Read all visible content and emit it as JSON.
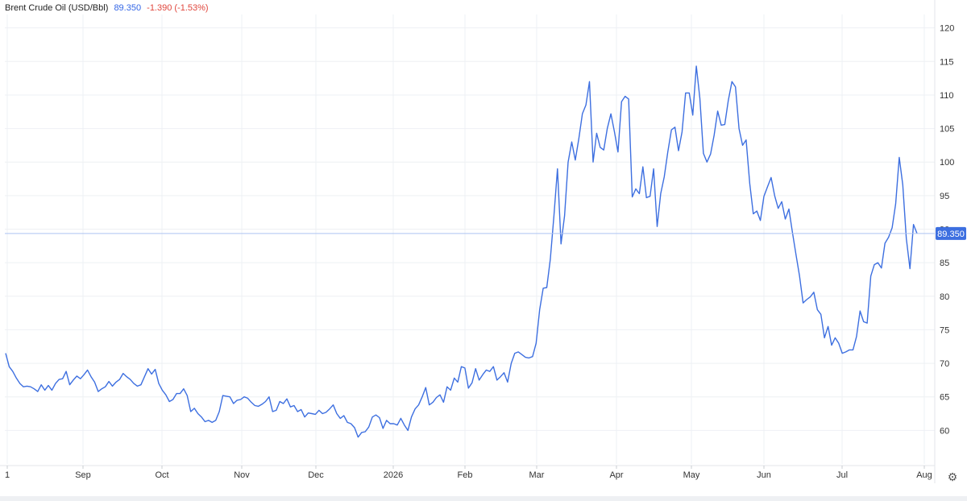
{
  "header": {
    "title": "Brent Crude Oil (USD/Bbl)",
    "price": "89.350",
    "change": "-1.390 (-1.53%)"
  },
  "price_label": "89.350",
  "settings_icon": "gear-icon",
  "colors": {
    "line": "#3d6fe0",
    "price_tag": "#3d6fe0",
    "grid": "#eef0f4",
    "change_negative": "#e0463c"
  },
  "chart_data": {
    "type": "line",
    "title": "Brent Crude Oil (USD/Bbl)",
    "ylim": [
      55,
      122
    ],
    "y_ticks": [
      60,
      65,
      70,
      75,
      80,
      85,
      90,
      95,
      100,
      105,
      110,
      115,
      120
    ],
    "x_ticks": [
      "1",
      "Sep",
      "Oct",
      "Nov",
      "Dec",
      "2026",
      "Feb",
      "Mar",
      "Apr",
      "May",
      "Jun",
      "Jul",
      "Aug"
    ],
    "grid": true,
    "current_value": 89.35,
    "series": [
      {
        "values": [
          71.5,
          69.5,
          68.8,
          67.8,
          67.0,
          66.5,
          66.6,
          66.5,
          66.2,
          65.8,
          66.8,
          66.0,
          66.7,
          66.0,
          67.0,
          67.6,
          67.7,
          68.8,
          66.8,
          67.5,
          68.1,
          67.7,
          68.3,
          69.0,
          68.0,
          67.2,
          65.8,
          66.2,
          66.5,
          67.3,
          66.6,
          67.2,
          67.6,
          68.5,
          68.0,
          67.6,
          67.0,
          66.6,
          66.8,
          68.0,
          69.2,
          68.4,
          69.1,
          67.0,
          66.0,
          65.3,
          64.3,
          64.6,
          65.5,
          65.5,
          66.2,
          65.2,
          62.8,
          63.3,
          62.5,
          62.0,
          61.3,
          61.5,
          61.2,
          61.5,
          62.8,
          65.2,
          65.1,
          65.0,
          64.0,
          64.5,
          64.6,
          65.0,
          64.8,
          64.2,
          63.7,
          63.6,
          63.9,
          64.3,
          65.0,
          62.8,
          63.0,
          64.3,
          64.0,
          64.7,
          63.5,
          63.7,
          62.8,
          63.1,
          62.0,
          62.6,
          62.5,
          62.4,
          63.0,
          62.5,
          62.7,
          63.2,
          63.8,
          62.5,
          61.8,
          62.2,
          61.2,
          61.0,
          60.4,
          59.0,
          59.7,
          59.8,
          60.5,
          62.0,
          62.3,
          61.9,
          60.3,
          61.5,
          61.0,
          61.0,
          60.8,
          61.8,
          60.8,
          60.0,
          62.0,
          63.2,
          63.8,
          65.0,
          66.4,
          63.8,
          64.2,
          64.9,
          65.3,
          64.2,
          66.5,
          66.0,
          67.8,
          67.2,
          69.5,
          69.3,
          66.3,
          67.1,
          69.2,
          67.5,
          68.3,
          69.0,
          68.8,
          69.5,
          67.5,
          68.0,
          68.6,
          67.2,
          70.0,
          71.5,
          71.7,
          71.3,
          70.9,
          70.8,
          71.0,
          73.0,
          78.0,
          81.2,
          81.3,
          85.5,
          92.0,
          99.0,
          87.8,
          92.0,
          100.0,
          103.0,
          100.3,
          103.5,
          107.2,
          108.5,
          112.0,
          100.0,
          104.3,
          102.2,
          101.8,
          105.0,
          107.2,
          104.5,
          101.5,
          109.0,
          109.8,
          109.4,
          94.8,
          96.0,
          95.3,
          99.3,
          94.7,
          94.9,
          99.0,
          90.4,
          95.3,
          97.8,
          101.5,
          104.8,
          105.2,
          101.7,
          104.5,
          110.3,
          110.3,
          107.0,
          114.3,
          109.5,
          101.3,
          100.0,
          101.2,
          104.0,
          107.6,
          105.5,
          105.6,
          109.2,
          112.0,
          111.2,
          105.0,
          102.5,
          103.3,
          96.8,
          92.3,
          92.7,
          91.3,
          94.9,
          96.3,
          97.7,
          95.0,
          93.1,
          94.1,
          91.5,
          93.0,
          89.5,
          86.2,
          83.0,
          79.0,
          79.5,
          79.9,
          80.6,
          78.0,
          77.3,
          73.8,
          75.5,
          72.7,
          73.8,
          73.0,
          71.5,
          71.7,
          72.0,
          72.0,
          74.0,
          77.8,
          76.2,
          76.0,
          83.0,
          84.7,
          85.0,
          84.2,
          87.9,
          88.8,
          90.2,
          93.8,
          100.7,
          96.6,
          88.6,
          84.1,
          90.7,
          89.35
        ]
      }
    ]
  }
}
